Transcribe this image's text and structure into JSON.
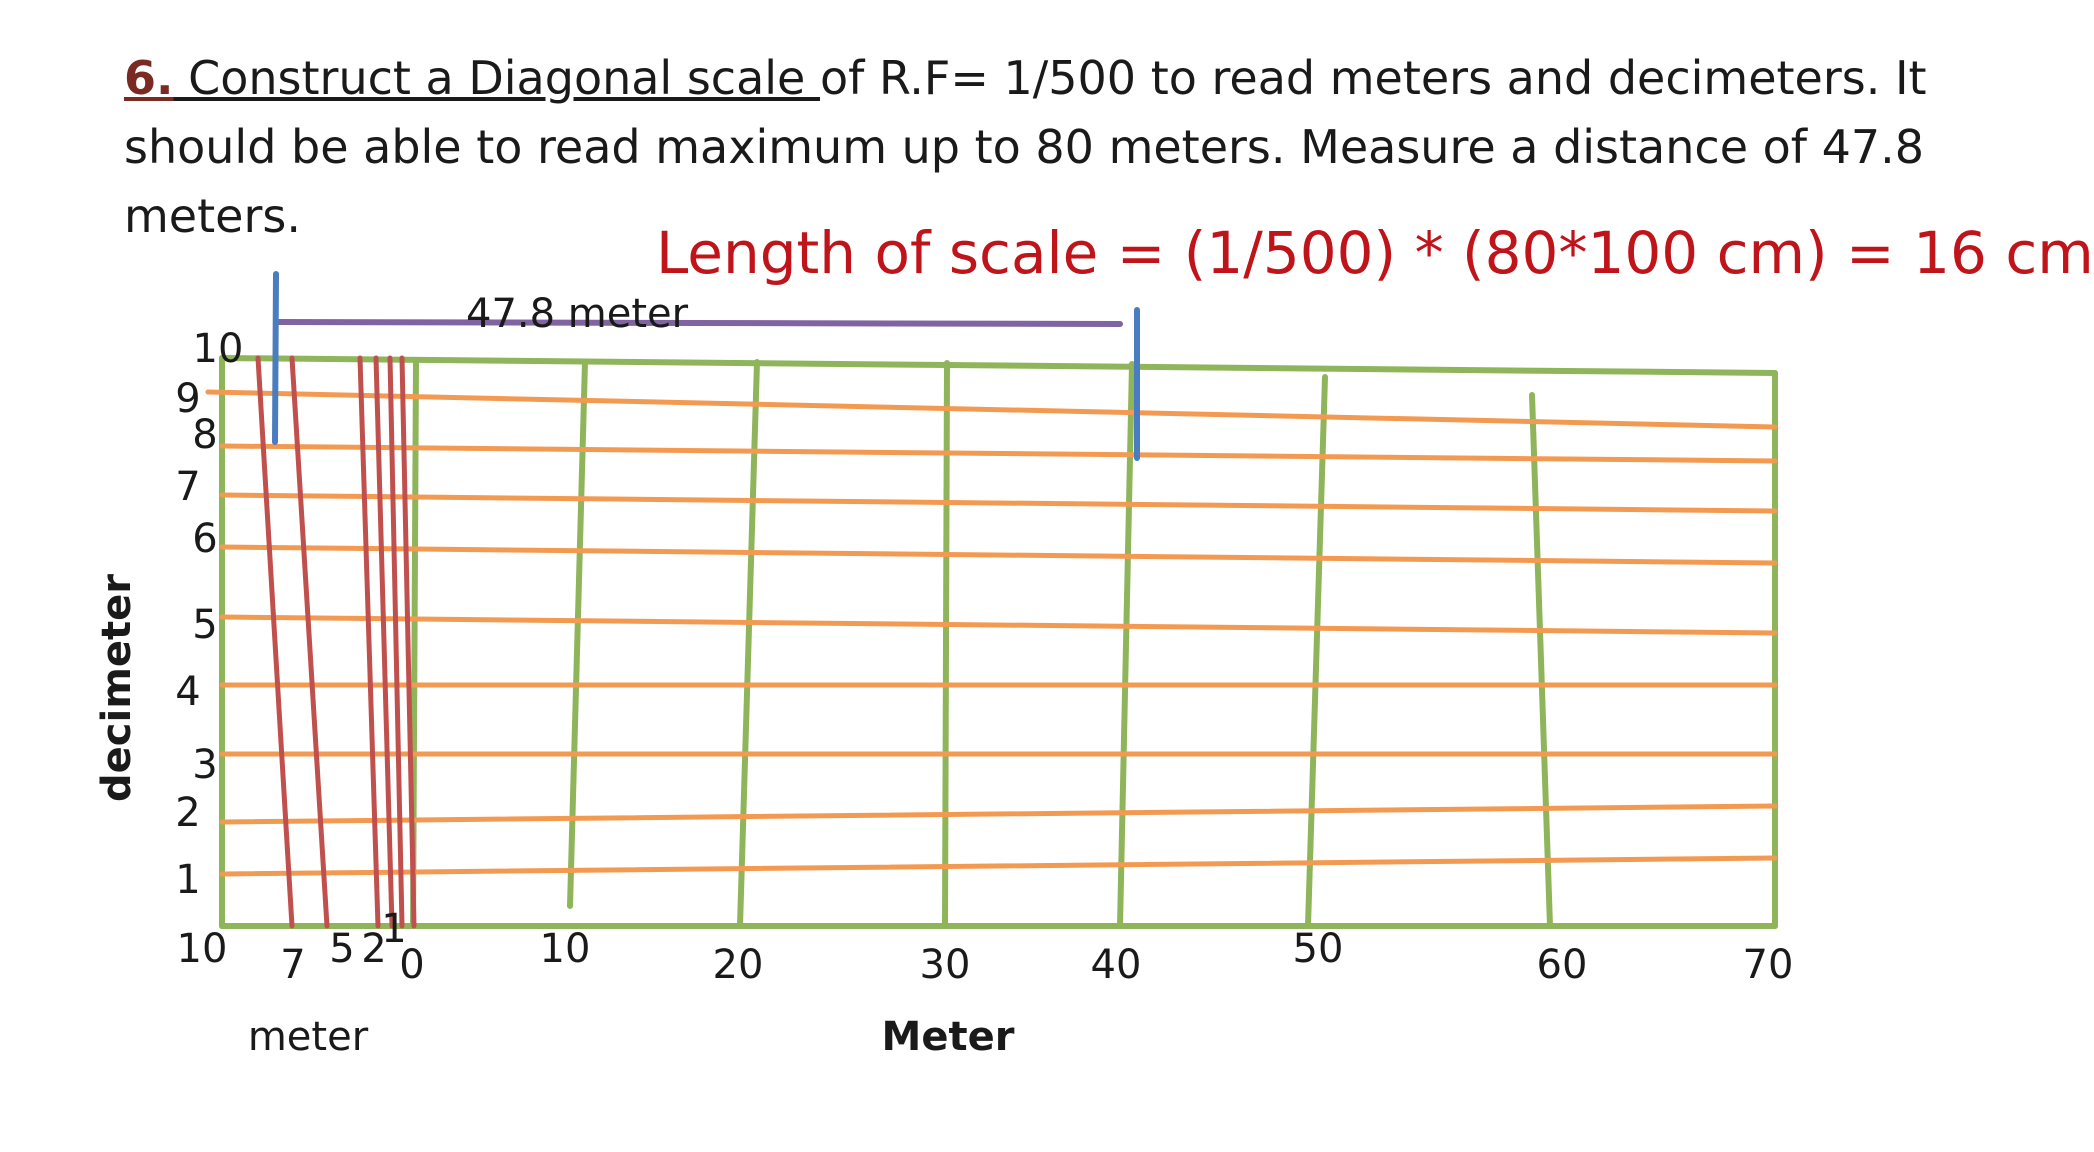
{
  "problem": {
    "number": "6.",
    "underlined_text": " Construct a Diagonal scale ",
    "text": "of R.F= 1/500 to read meters and decimeters. It should be able to read maximum up to 80 meters. Measure a distance of 47.8 meters."
  },
  "length_equation": "Length of scale = (1/500) * (80*100 cm) = 16 cm",
  "measurement_label": "47.8 meter",
  "decimeter_axis": {
    "title": "decimeter",
    "labels": [
      "10",
      "9",
      "8",
      "7",
      "6",
      "5",
      "4",
      "3",
      "2",
      "1"
    ]
  },
  "meter_axis_left": {
    "title": "meter",
    "labels": [
      "10",
      "7",
      "5",
      "2",
      "1",
      "0"
    ]
  },
  "meter_axis_main": {
    "title": "Meter",
    "labels": [
      "10",
      "20",
      "30",
      "40",
      "50",
      "60",
      "70"
    ]
  },
  "colors": {
    "frame": "#8fb55a",
    "horizontal_lines": "#f39a52",
    "diagonals": "#c0504d",
    "marker": "#4a7dbf",
    "measure_bar": "#8064a2",
    "equation": "#c0141b"
  }
}
